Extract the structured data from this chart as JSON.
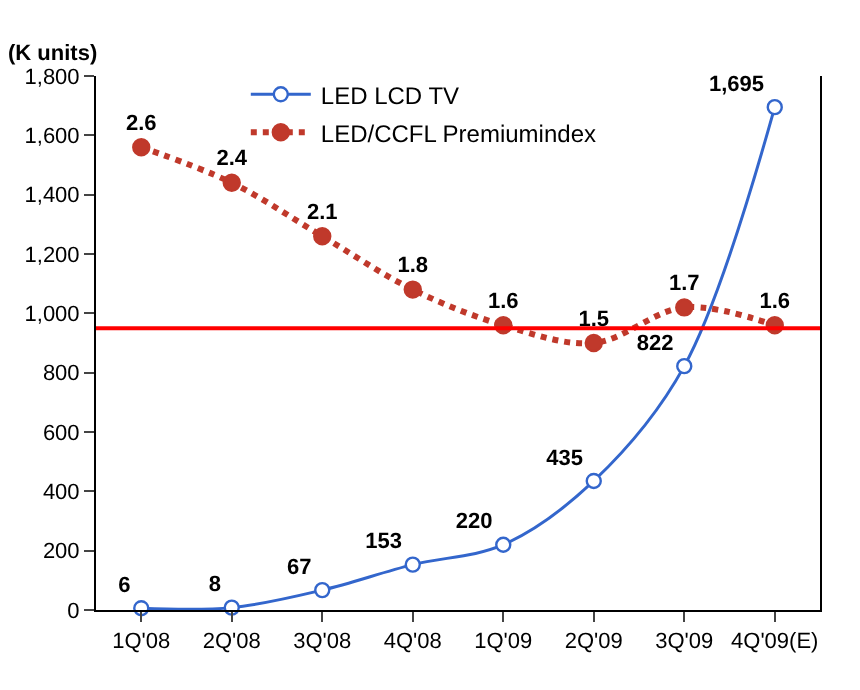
{
  "chart_data": {
    "type": "line",
    "ylabel": "(K units)",
    "categories": [
      "1Q'08",
      "2Q'08",
      "3Q'08",
      "4Q'08",
      "1Q'09",
      "2Q'09",
      "3Q'09",
      "4Q'09(E)"
    ],
    "series": [
      {
        "name": "LED LCD TV",
        "color": "#3366cc",
        "values": [
          6,
          8,
          67,
          153,
          220,
          435,
          822,
          1695
        ],
        "value_labels": [
          "6",
          "8",
          "67",
          "153",
          "220",
          "435",
          "822",
          "1,695"
        ],
        "line_style": "solid",
        "marker": "circle"
      },
      {
        "name": "LED/CCFL Premiumindex",
        "color": "#c0392b",
        "values": [
          2.6,
          2.4,
          2.1,
          1.8,
          1.6,
          1.5,
          1.7,
          1.6
        ],
        "axis": "y2",
        "value_labels": [
          "2.6",
          "2.4",
          "2.1",
          "1.8",
          "1.6",
          "1.5",
          "1.7",
          "1.6"
        ],
        "line_style": "dotted",
        "marker": "circle"
      }
    ],
    "ylim": [
      0,
      1800
    ],
    "yticks": [
      {
        "value": 0,
        "label": "0"
      },
      {
        "value": 200,
        "label": "200"
      },
      {
        "value": 400,
        "label": "400"
      },
      {
        "value": 600,
        "label": "600"
      },
      {
        "value": 800,
        "label": "800"
      },
      {
        "value": 1000,
        "label": "1,000"
      },
      {
        "value": 1200,
        "label": "1,200"
      },
      {
        "value": 1400,
        "label": "1,400"
      },
      {
        "value": 1600,
        "label": "1,600"
      },
      {
        "value": 1800,
        "label": "1,800"
      }
    ],
    "y2lim": [
      0,
      3
    ],
    "ref_lines": [
      {
        "axis": "y",
        "value": 950,
        "color": "#ff0000"
      }
    ],
    "legend": "top"
  }
}
